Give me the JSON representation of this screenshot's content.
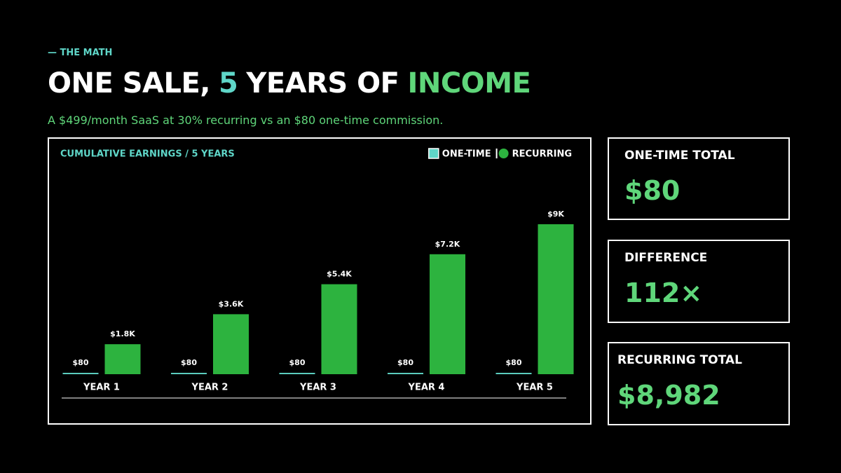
{
  "eyebrow": "— THE MATH",
  "headline": [
    "ONE SALE,",
    "5",
    "YEARS OF",
    "INCOME"
  ],
  "subtitle": "A $499/month SaaS at 30% recurring vs an $80 one-time commission.",
  "chart_data": {
    "type": "bar",
    "title": "CUMULATIVE EARNINGS / 5 YEARS",
    "categories": [
      "YEAR 1",
      "YEAR 2",
      "YEAR 3",
      "YEAR 4",
      "YEAR 5"
    ],
    "series": [
      {
        "name": "ONE-TIME",
        "color": "#5fd6c8",
        "values": [
          80,
          80,
          80,
          80,
          80
        ],
        "value_labels": [
          "$80",
          "$80",
          "$80",
          "$80",
          "$80"
        ]
      },
      {
        "name": "RECURRING",
        "color": "#2db33f",
        "values": [
          1800,
          3600,
          5400,
          7200,
          9000
        ],
        "value_labels": [
          "$1.8K",
          "$3.6K",
          "$5.4K",
          "$7.2K",
          "$9K"
        ]
      }
    ],
    "legend": "top-right",
    "grid": false
  },
  "cards": [
    {
      "label": "ONE-TIME TOTAL",
      "value": "$80"
    },
    {
      "label": "DIFFERENCE",
      "value": "112×"
    },
    {
      "label": "RECURRING TOTAL",
      "value": "$8,982"
    }
  ]
}
